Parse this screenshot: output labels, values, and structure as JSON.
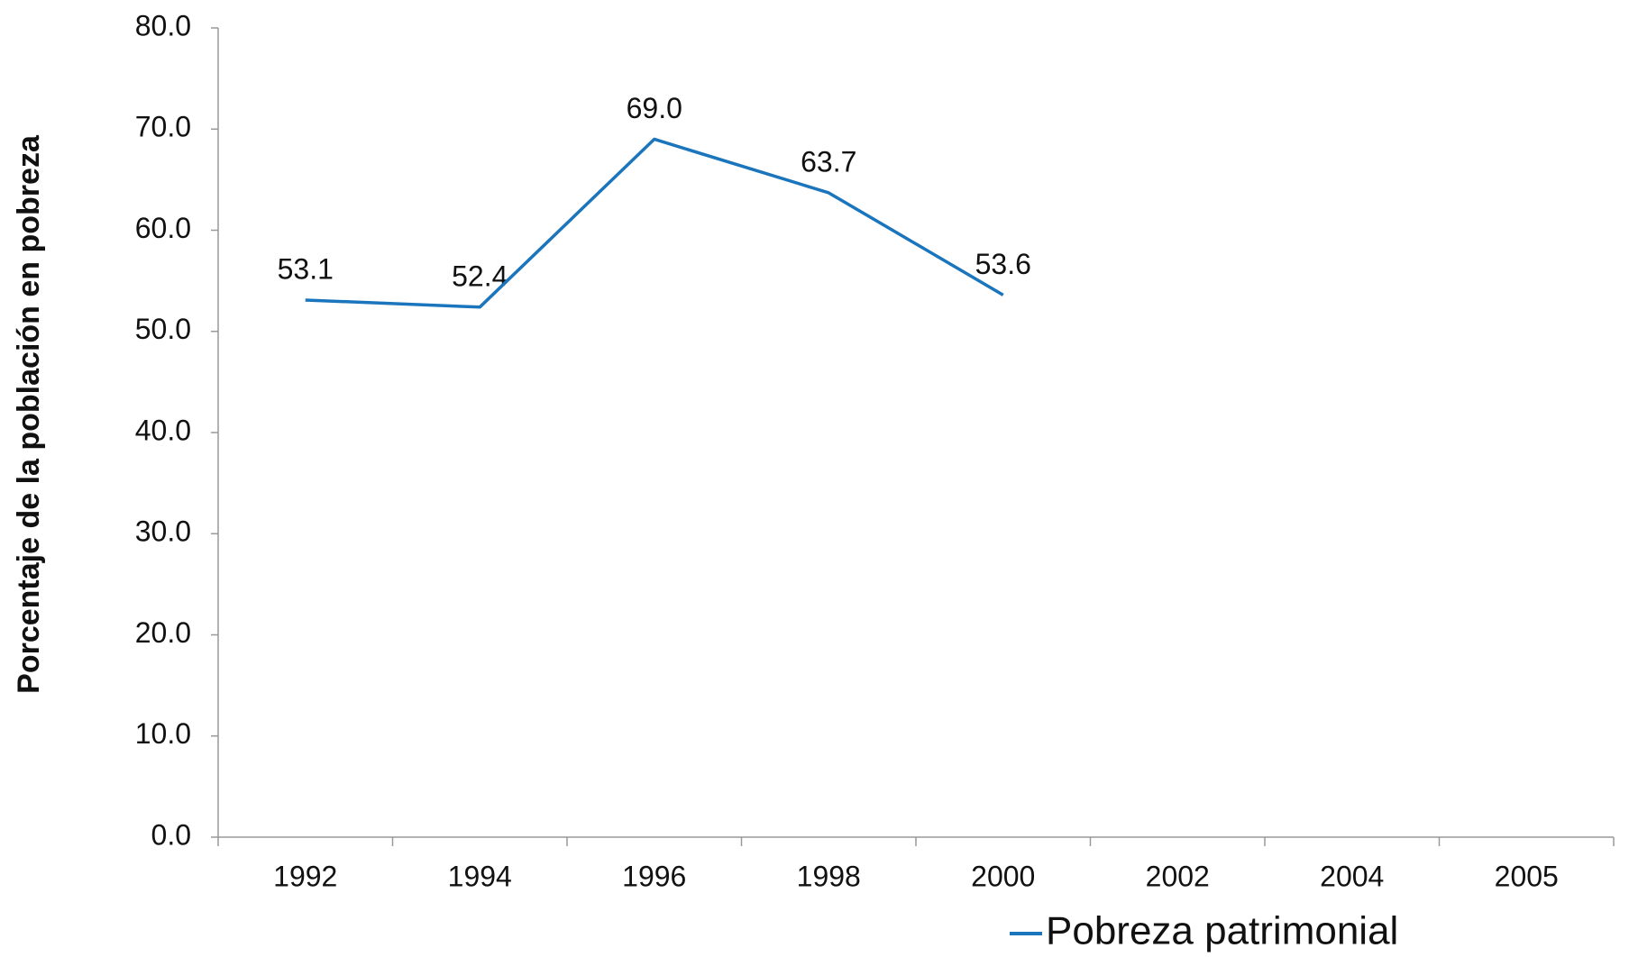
{
  "chart_data": {
    "type": "line",
    "y_label": "Porcentaje de la población en pobreza",
    "categories": [
      "1992",
      "1994",
      "1996",
      "1998",
      "2000",
      "2002",
      "2004",
      "2005"
    ],
    "series": [
      {
        "name": "Pobreza patrimonial",
        "color": "#1a75bc",
        "values": [
          53.1,
          52.4,
          69.0,
          63.7,
          53.6,
          null,
          null,
          null
        ],
        "value_labels": [
          "53.1",
          "52.4",
          "69.0",
          "63.7",
          "53.6",
          null,
          null,
          null
        ]
      }
    ],
    "ylim": [
      0,
      80
    ],
    "yticks": [
      {
        "value": 0,
        "label": "0.0"
      },
      {
        "value": 10,
        "label": "10.0"
      },
      {
        "value": 20,
        "label": "20.0"
      },
      {
        "value": 30,
        "label": "30.0"
      },
      {
        "value": 40,
        "label": "40.0"
      },
      {
        "value": 50,
        "label": "50.0"
      },
      {
        "value": 60,
        "label": "60.0"
      },
      {
        "value": 70,
        "label": "70.0"
      },
      {
        "value": 80,
        "label": "80.0"
      }
    ],
    "grid": false,
    "legend": "bottom-right"
  }
}
